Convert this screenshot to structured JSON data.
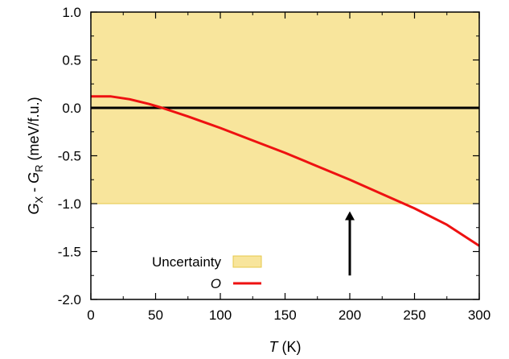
{
  "chart_data": {
    "type": "line",
    "xlabel_italic": "T",
    "xlabel_rest": " (K)",
    "ylabel_parts": {
      "g1": "G",
      "sub1": "X",
      "mid": " - ",
      "g2": "G",
      "sub2": "R",
      "unit": " (meV/f.u.)"
    },
    "xlim": [
      0,
      300
    ],
    "ylim": [
      -2.0,
      1.0
    ],
    "x_ticks": [
      0,
      50,
      100,
      150,
      200,
      250,
      300
    ],
    "x_tick_labels": [
      "0",
      "50",
      "100",
      "150",
      "200",
      "250",
      "300"
    ],
    "y_ticks": [
      1.0,
      0.5,
      0.0,
      -0.5,
      -1.0,
      -1.5,
      -2.0
    ],
    "y_tick_labels": [
      "1.0",
      "0.5",
      "0.0",
      "-0.5",
      "-1.0",
      "-1.5",
      "-2.0"
    ],
    "uncertainty_band": {
      "y_min": -1.0,
      "y_max": 1.0,
      "color": "#f8e59c",
      "edge_color": "#e6c84a"
    },
    "zero_line": {
      "y": 0.0,
      "color": "#000000"
    },
    "series": [
      {
        "name": "O",
        "color": "#ee1111",
        "x": [
          0,
          15,
          30,
          45,
          55,
          75,
          100,
          125,
          150,
          175,
          200,
          225,
          250,
          275,
          300
        ],
        "y": [
          0.12,
          0.12,
          0.09,
          0.04,
          0.0,
          -0.09,
          -0.21,
          -0.34,
          -0.47,
          -0.61,
          -0.75,
          -0.9,
          -1.05,
          -1.22,
          -1.44
        ]
      }
    ],
    "arrow": {
      "x": 200,
      "y_tail": -1.75,
      "y_head": -1.08,
      "color": "#000000"
    },
    "legend": {
      "position": "bottom-left",
      "entries": [
        {
          "label": "Uncertainty",
          "italic": false,
          "kind": "band"
        },
        {
          "label": "O",
          "italic": true,
          "kind": "line"
        }
      ]
    },
    "grid": false
  }
}
